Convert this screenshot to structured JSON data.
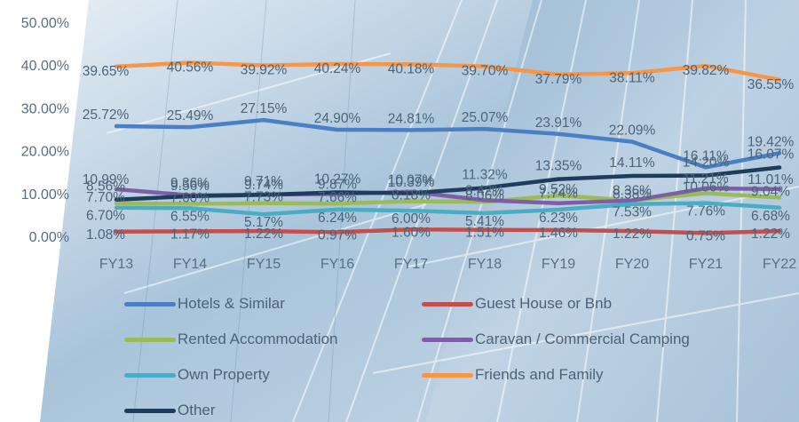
{
  "chart_data": {
    "type": "line",
    "categories": [
      "FY13",
      "FY14",
      "FY15",
      "FY16",
      "FY17",
      "FY18",
      "FY19",
      "FY20",
      "FY21",
      "FY22"
    ],
    "y_ticks": [
      "0.00%",
      "10.00%",
      "20.00%",
      "30.00%",
      "40.00%",
      "50.00%"
    ],
    "ylim": [
      0,
      50
    ],
    "grid": false,
    "legend_position": "bottom",
    "series": [
      {
        "name": "Hotels & Similar",
        "color": "#4a7fc4",
        "values": [
          25.72,
          25.49,
          27.15,
          24.9,
          24.81,
          25.07,
          23.91,
          22.09,
          16.11,
          19.42
        ],
        "labels": [
          "25.72%",
          "25.49%",
          "27.15%",
          "24.90%",
          "24.81%",
          "25.07%",
          "23.91%",
          "22.09%",
          "16.11%",
          "19.42%"
        ]
      },
      {
        "name": "Guest House or Bnb",
        "color": "#c24f4c",
        "values": [
          1.08,
          1.17,
          1.22,
          0.97,
          1.6,
          1.51,
          1.46,
          1.22,
          0.75,
          1.22
        ],
        "labels": [
          "1.08%",
          "1.17%",
          "1.22%",
          "0.97%",
          "1.60%",
          "1.51%",
          "1.46%",
          "1.22%",
          "0.75%",
          "1.22%"
        ]
      },
      {
        "name": "Rented Accommodation",
        "color": "#9bbb59",
        "values": [
          7.7,
          7.6,
          7.73,
          7.66,
          8.18,
          8.06,
          9.52,
          8.38,
          10.06,
          9.04
        ],
        "labels": [
          "7.70%",
          "7.60%",
          "7.73%",
          "7.66%",
          "8.18%",
          "8.06%",
          "9.52%",
          "8.38%",
          "10.06%",
          "9.04%"
        ]
      },
      {
        "name": "Caravan / Commercial Camping",
        "color": "#7e5fa6",
        "values": [
          10.99,
          9.56,
          9.74,
          9.87,
          10.39,
          8.42,
          7.74,
          8.36,
          11.21,
          11.01
        ],
        "labels": [
          "10.99%",
          "9.56%",
          "9.74%",
          "9.87%",
          "10.39%",
          "8.42%",
          "7.74%",
          "8.36%",
          "11.21%",
          "11.01%"
        ]
      },
      {
        "name": "Own Property",
        "color": "#4bacc6",
        "values": [
          6.7,
          6.55,
          5.17,
          6.24,
          6.0,
          5.41,
          6.23,
          7.53,
          7.76,
          6.68
        ],
        "labels": [
          "6.70%",
          "6.55%",
          "5.17%",
          "6.24%",
          "6.00%",
          "5.41%",
          "6.23%",
          "7.53%",
          "7.76%",
          "6.68%"
        ]
      },
      {
        "name": "Friends and Family",
        "color": "#f79646",
        "values": [
          39.65,
          40.56,
          39.92,
          40.24,
          40.18,
          39.7,
          37.79,
          38.11,
          39.82,
          36.55
        ],
        "labels": [
          "39.65%",
          "40.56%",
          "39.92%",
          "40.24%",
          "40.18%",
          "39.70%",
          "37.79%",
          "38.11%",
          "39.82%",
          "36.55%"
        ]
      },
      {
        "name": "Other",
        "color": "#1f3c5c",
        "values": [
          8.56,
          9.36,
          9.71,
          10.27,
          10.07,
          11.32,
          13.35,
          14.11,
          14.2,
          16.07
        ],
        "labels": [
          "8.56%",
          "9.36%",
          "9.71%",
          "10.27%",
          "10.07%",
          "11.32%",
          "13.35%",
          "14.11%",
          "14.20%",
          "16.07%"
        ]
      }
    ]
  }
}
